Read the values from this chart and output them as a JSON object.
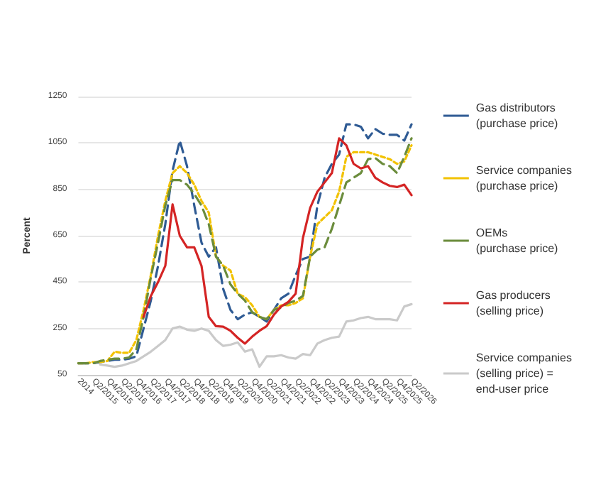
{
  "chart_data": {
    "type": "line",
    "ylabel": "Percent",
    "categories": [
      "2014",
      null,
      "Q2/2015",
      null,
      "Q4/2015",
      null,
      "Q2/2016",
      null,
      "Q4/2016",
      null,
      "Q2/2017",
      null,
      "Q4/2017",
      null,
      "Q2/2018",
      null,
      "Q4/2018",
      null,
      "Q2/2019",
      null,
      "Q4/2019",
      null,
      "Q2/2020",
      null,
      "Q4/2020",
      null,
      "Q2/2021",
      null,
      "Q4/2021",
      null,
      "Q2/2022",
      null,
      "Q4/2022",
      null,
      "Q2/2023",
      null,
      "Q4/2023",
      null,
      "Q2/2024",
      null,
      "Q4/2024",
      null,
      "Q2/2025",
      null,
      "Q4/2025",
      null,
      "Q2/2026"
    ],
    "ylim": [
      50,
      1250
    ],
    "yticks": [
      50,
      250,
      450,
      650,
      850,
      1050,
      1250
    ],
    "grid": "y",
    "legend": "right",
    "marker": "none",
    "series": [
      {
        "name": "Gas distributors\n(purchase price)",
        "color": "#2f5b94",
        "line_style": "dashed",
        "values": [
          100,
          100,
          100,
          105,
          110,
          115,
          115,
          120,
          130,
          250,
          370,
          520,
          700,
          930,
          1060,
          950,
          780,
          620,
          560,
          600,
          420,
          330,
          290,
          310,
          320,
          300,
          280,
          330,
          380,
          400,
          480,
          550,
          560,
          780,
          900,
          960,
          1000,
          1130,
          1130,
          1120,
          1070,
          1110,
          1090,
          1085,
          1085,
          1060,
          1130
        ]
      },
      {
        "name": "Service companies\n(purchase price)",
        "color": "#f2c200",
        "line_style": "dotted",
        "values": [
          100,
          100,
          105,
          105,
          110,
          150,
          145,
          145,
          200,
          330,
          480,
          650,
          800,
          920,
          950,
          920,
          870,
          800,
          750,
          560,
          520,
          500,
          400,
          385,
          350,
          300,
          290,
          330,
          350,
          350,
          360,
          380,
          560,
          700,
          730,
          760,
          840,
          990,
          1010,
          1010,
          1010,
          1000,
          990,
          980,
          960,
          970,
          1040
        ]
      },
      {
        "name": "OEMs\n(purchase price)",
        "color": "#6b8c3c",
        "line_style": "dashed",
        "values": [
          100,
          100,
          100,
          110,
          115,
          120,
          120,
          125,
          160,
          300,
          470,
          620,
          780,
          890,
          890,
          870,
          830,
          780,
          700,
          560,
          520,
          440,
          400,
          370,
          320,
          300,
          290,
          330,
          340,
          360,
          370,
          390,
          560,
          590,
          600,
          680,
          780,
          880,
          900,
          920,
          980,
          985,
          960,
          950,
          920,
          990,
          1070
        ]
      },
      {
        "name": "Gas producers\n(selling price)",
        "color": "#d42424",
        "line_style": "solid",
        "values": [
          null,
          null,
          null,
          null,
          null,
          null,
          null,
          null,
          null,
          300,
          390,
          450,
          520,
          785,
          650,
          600,
          600,
          520,
          300,
          260,
          258,
          240,
          210,
          185,
          215,
          240,
          260,
          310,
          345,
          365,
          400,
          640,
          770,
          840,
          880,
          920,
          1070,
          1040,
          960,
          940,
          950,
          900,
          880,
          865,
          860,
          870,
          825
        ]
      },
      {
        "name": "Service companies\n(selling price) =\nend-user price",
        "color": "#cacaca",
        "line_style": "solid",
        "values": [
          null,
          null,
          null,
          95,
          90,
          85,
          90,
          100,
          110,
          130,
          150,
          175,
          200,
          250,
          258,
          245,
          240,
          250,
          240,
          200,
          175,
          180,
          190,
          150,
          160,
          85,
          130,
          130,
          135,
          125,
          120,
          140,
          135,
          185,
          200,
          210,
          215,
          280,
          285,
          295,
          300,
          290,
          290,
          290,
          285,
          345,
          355
        ]
      }
    ]
  }
}
